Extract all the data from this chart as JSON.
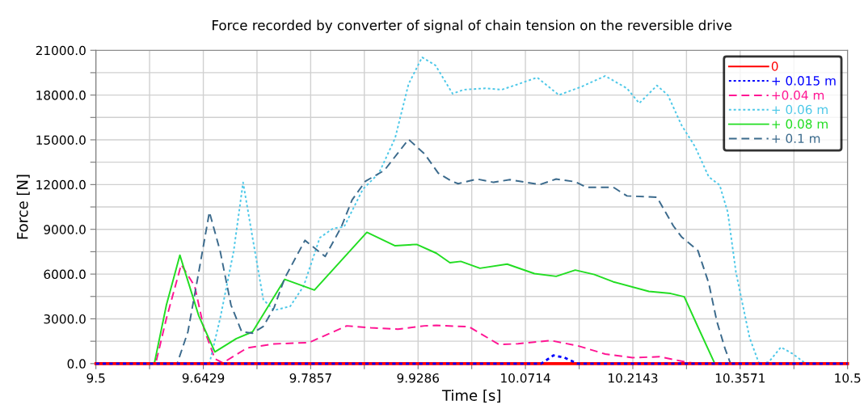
{
  "chart_data": {
    "type": "line",
    "title": "Force recorded by converter of signal of chain tension on the reversible drive",
    "xlabel": "Time [s]",
    "ylabel": "Force [N]",
    "xlim": [
      9.5,
      10.5
    ],
    "xticks": [
      9.5,
      {
        "value": 9.5714,
        "label": null
      },
      9.6429,
      {
        "value": 9.7143,
        "label": null
      },
      9.7857,
      {
        "value": 9.8571,
        "label": null
      },
      9.9286,
      {
        "value": 10.0,
        "label": null
      },
      10.0714,
      {
        "value": 10.1429,
        "label": null
      },
      10.2143,
      {
        "value": 10.2857,
        "label": null
      },
      10.3571,
      {
        "value": 10.4286,
        "label": null
      },
      10.5
    ],
    "ylim": [
      0,
      21000
    ],
    "yticks": [
      {
        "value": 0,
        "label": "0.0"
      },
      {
        "value": 1500,
        "label": null
      },
      {
        "value": 3000,
        "label": "3000.0"
      },
      {
        "value": 4500,
        "label": null
      },
      {
        "value": 6000,
        "label": "6000.0"
      },
      {
        "value": 7500,
        "label": null
      },
      {
        "value": 9000,
        "label": "9000.0"
      },
      {
        "value": 10500,
        "label": null
      },
      {
        "value": 12000,
        "label": "12000.0"
      },
      {
        "value": 13500,
        "label": null
      },
      {
        "value": 15000,
        "label": "15000.0"
      },
      {
        "value": 16500,
        "label": null
      },
      {
        "value": 18000,
        "label": "18000.0"
      },
      {
        "value": 19500,
        "label": null
      },
      {
        "value": 21000,
        "label": "21000.0"
      }
    ],
    "grid": true,
    "legend": "top right",
    "series": [
      {
        "name": "0",
        "color": "#ff0000",
        "line_style": "solid",
        "x": [
          9.5,
          10.5
        ],
        "values": [
          0,
          0
        ]
      },
      {
        "name": "+ 0.015 m",
        "color": "#0000ff",
        "line_style": "dotted",
        "x": [
          9.5,
          10.0924,
          10.1087,
          10.1232,
          10.141,
          10.5
        ],
        "values": [
          0,
          0,
          550,
          400,
          0,
          0
        ]
      },
      {
        "name": "+0.04 m",
        "color": "#ff1493",
        "line_style": "dashed",
        "x": [
          9.5,
          9.5795,
          9.5938,
          9.6135,
          9.6314,
          9.6439,
          9.6583,
          9.669,
          9.7012,
          9.737,
          9.7836,
          9.8337,
          9.8659,
          9.9017,
          9.9375,
          9.9529,
          9.9964,
          10.0362,
          10.0616,
          10.1051,
          10.1413,
          10.1776,
          10.2138,
          10.25,
          10.2863,
          10.3008,
          10.5
        ],
        "values": [
          0,
          0,
          3030,
          6640,
          5200,
          2310,
          320,
          50,
          1050,
          1320,
          1410,
          2530,
          2400,
          2310,
          2530,
          2560,
          2470,
          1280,
          1330,
          1550,
          1190,
          640,
          400,
          460,
          90,
          0,
          0
        ]
      },
      {
        "name": "+ 0.06 m",
        "color": "#4dc8e8",
        "line_style": "dotted",
        "x": [
          9.5,
          9.651,
          9.6653,
          9.6833,
          9.6958,
          9.7084,
          9.7227,
          9.737,
          9.7585,
          9.7764,
          9.7979,
          9.8158,
          9.8301,
          9.8552,
          9.8766,
          9.8981,
          9.9159,
          9.9339,
          9.9518,
          9.9746,
          9.9891,
          10.0181,
          10.0399,
          10.0616,
          10.087,
          10.116,
          10.1449,
          10.1776,
          10.2065,
          10.2228,
          10.2464,
          10.2609,
          10.279,
          10.2972,
          10.3153,
          10.3298,
          10.3406,
          10.3515,
          10.3696,
          10.3823,
          10.395,
          10.4113,
          10.4276,
          10.442,
          10.4475,
          10.5
        ],
        "values": [
          0,
          0,
          3030,
          7540,
          12140,
          8440,
          4290,
          3570,
          3840,
          5200,
          8440,
          9070,
          9160,
          11690,
          12770,
          15120,
          18730,
          20530,
          19990,
          18090,
          18360,
          18450,
          18360,
          18730,
          19180,
          18000,
          18540,
          19280,
          18450,
          17450,
          18640,
          18000,
          15990,
          14530,
          12520,
          11970,
          10140,
          6120,
          1740,
          0,
          90,
          1100,
          640,
          90,
          0,
          0
        ]
      },
      {
        "name": "+ 0.08 m",
        "color": "#22dd22",
        "line_style": "solid",
        "x": [
          9.5,
          9.5777,
          9.5938,
          9.6117,
          9.6368,
          9.6583,
          9.6869,
          9.7084,
          9.7513,
          9.7907,
          9.8605,
          9.8981,
          9.9268,
          9.9529,
          9.971,
          9.9855,
          10.0109,
          10.0471,
          10.0834,
          10.1123,
          10.1377,
          10.1631,
          10.1884,
          10.2356,
          10.2646,
          10.2827,
          10.3008,
          10.3225,
          10.3243,
          10.5
        ],
        "values": [
          0,
          0,
          3930,
          7270,
          3210,
          780,
          1680,
          2130,
          5650,
          4930,
          8800,
          7900,
          7990,
          7400,
          6760,
          6850,
          6390,
          6670,
          6030,
          5850,
          6270,
          5970,
          5480,
          4840,
          4700,
          4480,
          2470,
          90,
          0,
          0
        ]
      },
      {
        "name": "+ 0.1 m",
        "color": "#3b6a8c",
        "line_style": "dashed",
        "x": [
          9.5,
          9.6081,
          9.6224,
          9.6367,
          9.651,
          9.6653,
          9.6797,
          9.694,
          9.7084,
          9.7227,
          9.737,
          9.7513,
          9.7781,
          9.805,
          9.8265,
          9.8408,
          9.8587,
          9.8837,
          9.9159,
          9.9375,
          9.9554,
          9.9733,
          9.9819,
          10.0072,
          10.029,
          10.0507,
          10.0725,
          10.0906,
          10.1123,
          10.1377,
          10.1522,
          10.1884,
          10.2065,
          10.2464,
          10.2682,
          10.279,
          10.3008,
          10.3153,
          10.3261,
          10.337,
          10.3443,
          10.5
        ],
        "values": [
          0,
          0,
          2130,
          6100,
          10160,
          7540,
          3930,
          2130,
          2040,
          2490,
          3750,
          5740,
          8260,
          7180,
          9160,
          10970,
          12230,
          12950,
          15030,
          14040,
          12770,
          12230,
          12060,
          12370,
          12150,
          12330,
          12150,
          12000,
          12370,
          12190,
          11820,
          11820,
          11240,
          11150,
          9230,
          8500,
          7580,
          5390,
          2830,
          1000,
          0,
          0
        ]
      }
    ]
  }
}
